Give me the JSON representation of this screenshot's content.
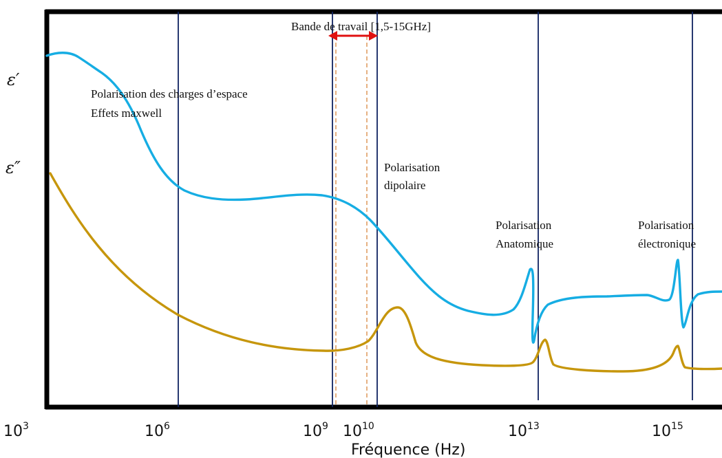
{
  "colors": {
    "epsilon_prime": "#16ade3",
    "epsilon_double_prime": "#c6960c",
    "band_arrow": "#e01010",
    "band_lines": "#d8873f",
    "vlines": "#0f2260",
    "frame": "#000000"
  },
  "y_labels": {
    "eps_prime": "ε′",
    "eps_double_prime": "ε″"
  },
  "x_axis": {
    "label": "Fréquence (Hz)",
    "ticks": [
      {
        "base": "10",
        "exp": "3"
      },
      {
        "base": "10",
        "exp": "6"
      },
      {
        "base": "10",
        "exp": "9"
      },
      {
        "base": "10",
        "exp": "10"
      },
      {
        "base": "10",
        "exp": "13"
      },
      {
        "base": "10",
        "exp": "15"
      }
    ]
  },
  "band": {
    "label": "Bande de travail [1,5-15GHz]"
  },
  "annotations": {
    "space_charge_1": "Polarisation des charges d’espace",
    "space_charge_2": "Effets maxwell",
    "dipolar_1": "Polarisation",
    "dipolar_2": "dipolaire",
    "anatomic_1": "Polarisation",
    "anatomic_2": "Anatomique",
    "electronic_1": "Polarisation",
    "electronic_2": "électronique"
  }
}
